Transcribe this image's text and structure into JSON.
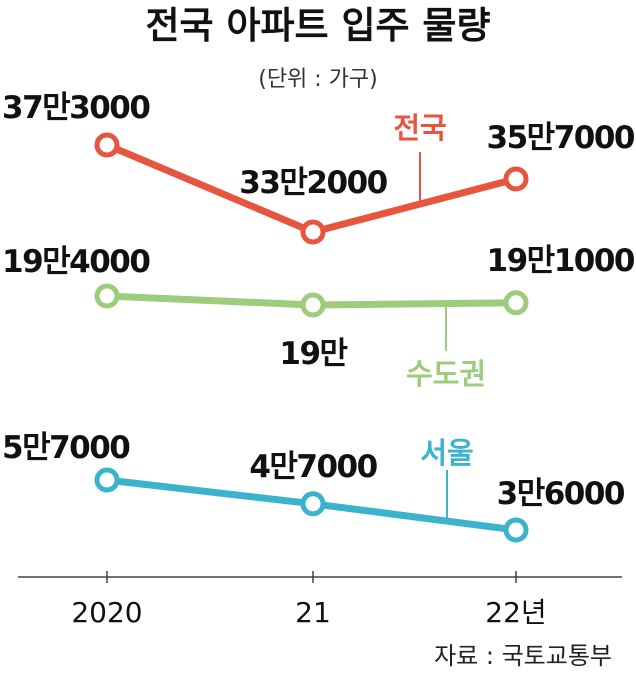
{
  "chart_data": {
    "type": "line",
    "title": "전국 아파트 입주 물량",
    "unit_label": "(단위 : 가구)",
    "source": "자료 : 국토교통부",
    "categories": [
      "2020",
      "21",
      "22년"
    ],
    "series": [
      {
        "name": "전국",
        "color": "#e8553e",
        "values": [
          373000,
          332000,
          357000
        ],
        "labels": [
          "37만3000",
          "33만2000",
          "35만7000"
        ]
      },
      {
        "name": "수도권",
        "color": "#9ccc7c",
        "values": [
          194000,
          190000,
          191000
        ],
        "labels": [
          "19만4000",
          "19만",
          "19만1000"
        ]
      },
      {
        "name": "서울",
        "color": "#3bb3cc",
        "values": [
          57000,
          47000,
          36000
        ],
        "labels": [
          "5만7000",
          "4만7000",
          "3만6000"
        ]
      }
    ],
    "grid": false,
    "legend": "inline labels"
  }
}
